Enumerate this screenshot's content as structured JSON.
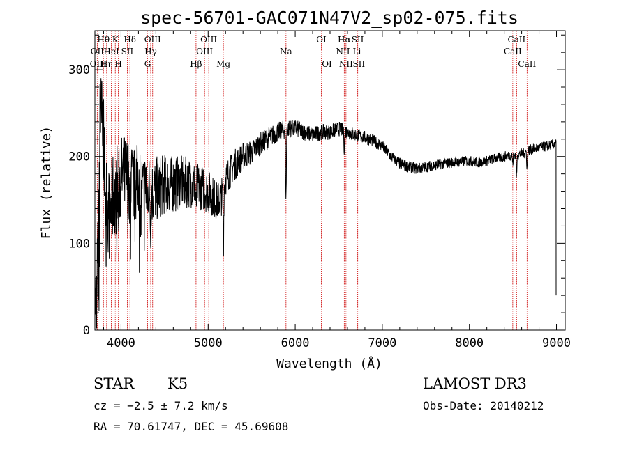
{
  "chart_data": {
    "type": "line",
    "title": "spec-56701-GAC071N47V2_sp02-075.fits",
    "xlabel": "Wavelength (Å)",
    "ylabel": "Flux (relative)",
    "xlim": [
      3700,
      9100
    ],
    "ylim": [
      0,
      345
    ],
    "xticks": [
      4000,
      5000,
      6000,
      7000,
      8000,
      9000
    ],
    "yticks": [
      0,
      100,
      200,
      300
    ],
    "x_minor_step": 200,
    "y_minor_step": 20,
    "anchors": [
      [
        3700,
        5
      ],
      [
        3730,
        60
      ],
      [
        3760,
        250
      ],
      [
        3790,
        230
      ],
      [
        3830,
        150
      ],
      [
        3870,
        130
      ],
      [
        3920,
        160
      ],
      [
        3970,
        170
      ],
      [
        4000,
        175
      ],
      [
        4050,
        178
      ],
      [
        4100,
        175
      ],
      [
        4150,
        165
      ],
      [
        4200,
        175
      ],
      [
        4250,
        160
      ],
      [
        4300,
        170
      ],
      [
        4350,
        158
      ],
      [
        4400,
        162
      ],
      [
        4500,
        168
      ],
      [
        4600,
        168
      ],
      [
        4700,
        170
      ],
      [
        4800,
        170
      ],
      [
        4900,
        165
      ],
      [
        5000,
        160
      ],
      [
        5050,
        155
      ],
      [
        5100,
        148
      ],
      [
        5150,
        152
      ],
      [
        5200,
        175
      ],
      [
        5300,
        190
      ],
      [
        5400,
        200
      ],
      [
        5500,
        205
      ],
      [
        5600,
        215
      ],
      [
        5700,
        222
      ],
      [
        5800,
        228
      ],
      [
        5900,
        232
      ],
      [
        6000,
        233
      ],
      [
        6100,
        228
      ],
      [
        6200,
        225
      ],
      [
        6300,
        228
      ],
      [
        6400,
        228
      ],
      [
        6500,
        232
      ],
      [
        6600,
        228
      ],
      [
        6700,
        225
      ],
      [
        6800,
        222
      ],
      [
        6900,
        218
      ],
      [
        7000,
        212
      ],
      [
        7100,
        200
      ],
      [
        7200,
        192
      ],
      [
        7300,
        188
      ],
      [
        7400,
        186
      ],
      [
        7500,
        188
      ],
      [
        7600,
        190
      ],
      [
        7700,
        192
      ],
      [
        7800,
        193
      ],
      [
        7900,
        194
      ],
      [
        8000,
        195
      ],
      [
        8100,
        193
      ],
      [
        8200,
        195
      ],
      [
        8300,
        198
      ],
      [
        8400,
        200
      ],
      [
        8500,
        202
      ],
      [
        8600,
        203
      ],
      [
        8700,
        208
      ],
      [
        8800,
        210
      ],
      [
        8900,
        212
      ],
      [
        8990,
        215
      ]
    ],
    "dips": [
      [
        3934,
        35
      ],
      [
        3969,
        40
      ],
      [
        4102,
        30
      ],
      [
        4227,
        45
      ],
      [
        4300,
        40
      ],
      [
        4340,
        30
      ],
      [
        4861,
        30
      ],
      [
        5175,
        70
      ],
      [
        5894,
        80
      ],
      [
        6563,
        20
      ],
      [
        8498,
        10
      ],
      [
        8542,
        25
      ],
      [
        8662,
        20
      ]
    ],
    "noise_amplitude": [
      [
        3700,
        60
      ],
      [
        4000,
        50
      ],
      [
        4500,
        35
      ],
      [
        5000,
        25
      ],
      [
        5500,
        14
      ],
      [
        6000,
        10
      ],
      [
        7000,
        7
      ],
      [
        8000,
        6
      ],
      [
        9000,
        6
      ]
    ],
    "spectral_lines": [
      {
        "label": "Hθ",
        "x": 3798,
        "row": 0
      },
      {
        "label": "OII",
        "x": 3727,
        "row": 1
      },
      {
        "label": "OIII",
        "x": 3737,
        "row": 2
      },
      {
        "label": "Hη",
        "x": 3835,
        "row": 2
      },
      {
        "label": "HeI",
        "x": 3889,
        "row": 1
      },
      {
        "label": "K",
        "x": 3934,
        "row": 0
      },
      {
        "label": "SII",
        "x": 4072,
        "row": 1
      },
      {
        "label": "H",
        "x": 3969,
        "row": 2
      },
      {
        "label": "Hδ",
        "x": 4102,
        "row": 0
      },
      {
        "label": "OIII",
        "x": 4363,
        "row": 0
      },
      {
        "label": "Hγ",
        "x": 4341,
        "row": 1
      },
      {
        "label": "G",
        "x": 4305,
        "row": 2
      },
      {
        "label": "Hβ",
        "x": 4861,
        "row": 2
      },
      {
        "label": "OIII",
        "x": 4959,
        "row": 1
      },
      {
        "label": "OIII",
        "x": 5007,
        "row": 0
      },
      {
        "label": "Mg",
        "x": 5175,
        "row": 2
      },
      {
        "label": "Na",
        "x": 5894,
        "row": 1
      },
      {
        "label": "OI",
        "x": 6300,
        "row": 0
      },
      {
        "label": "OI",
        "x": 6364,
        "row": 2
      },
      {
        "label": "Hα",
        "x": 6563,
        "row": 0
      },
      {
        "label": "NII",
        "x": 6548,
        "row": 1
      },
      {
        "label": "NII",
        "x": 6583,
        "row": 2
      },
      {
        "label": "SII",
        "x": 6717,
        "row": 0
      },
      {
        "label": "Li",
        "x": 6708,
        "row": 1
      },
      {
        "label": "SII",
        "x": 6731,
        "row": 2
      },
      {
        "label": "CaII",
        "x": 8542,
        "row": 0
      },
      {
        "label": "CaII",
        "x": 8498,
        "row": 1
      },
      {
        "label": "CaII",
        "x": 8662,
        "row": 2
      }
    ]
  },
  "info": {
    "object_class": "STAR",
    "subclass": "K5",
    "survey": "LAMOST DR3",
    "redshift": "cz = −2.5 ± 7.2 km/s",
    "obs_date": "Obs-Date: 20140212",
    "coords": "RA =  70.61747, DEC =  45.69608"
  },
  "colors": {
    "spectrum": "#000000",
    "line_marker": "#cc0000",
    "axes": "#000000"
  }
}
